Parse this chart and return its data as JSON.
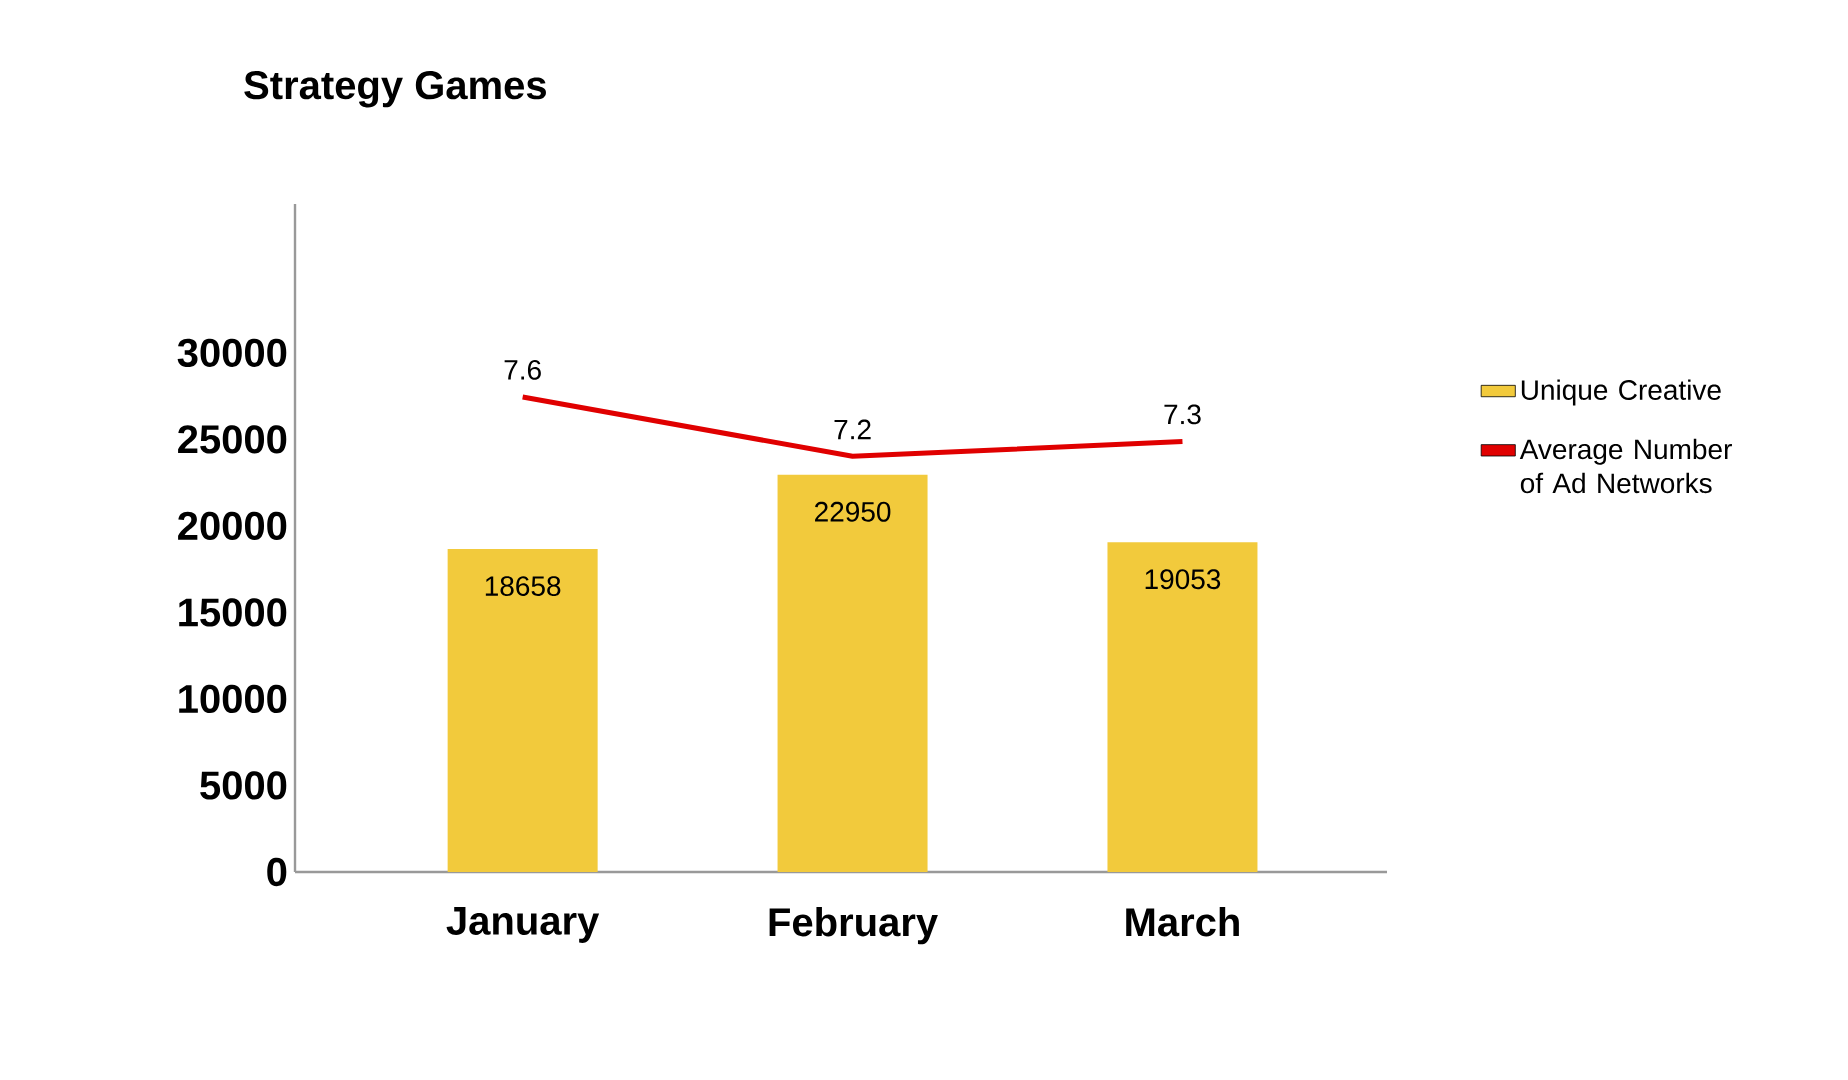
{
  "chart_data": {
    "type": "bar",
    "title": "Strategy Games",
    "categories": [
      "January",
      "February",
      "March"
    ],
    "series": [
      {
        "name": "Unique Creative",
        "color": "#f2ca3c",
        "values": [
          18658,
          22950,
          19053
        ]
      },
      {
        "name": "Average Number of Ad Networks",
        "type": "line",
        "axis": "y2",
        "color": "#e00000",
        "values": [
          7.6,
          7.2,
          7.3
        ]
      }
    ],
    "ylim": [
      0,
      38600
    ],
    "yticks": [
      0,
      5000,
      10000,
      15000,
      20000,
      25000,
      30000
    ],
    "y2lim": [
      4.4,
      8.9
    ],
    "data_labels": true,
    "legend": "right"
  }
}
